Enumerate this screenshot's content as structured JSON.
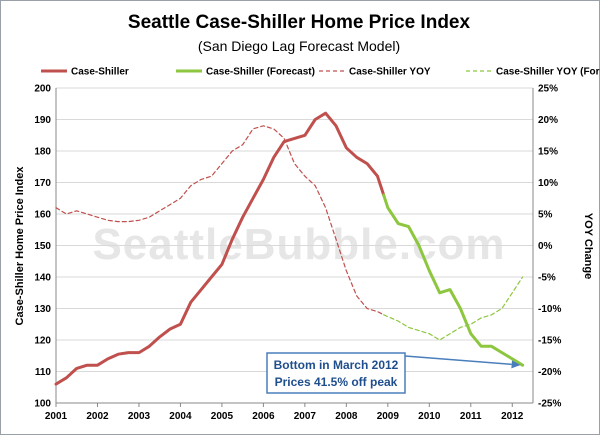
{
  "chart_data": {
    "type": "line",
    "title": "Seattle Case-Shiller Home Price Index",
    "subtitle": "(San Diego Lag Forecast Model)",
    "ylabel": "Case-Shiller Home Price Index",
    "y2label": "YOY Change",
    "ylim": [
      100,
      200
    ],
    "y_ticks": [
      "100",
      "110",
      "120",
      "130",
      "140",
      "150",
      "160",
      "170",
      "180",
      "190",
      "200"
    ],
    "y2lim": [
      -25,
      25
    ],
    "y2_ticks": [
      "-25%",
      "-20%",
      "-15%",
      "-10%",
      "-5%",
      "0%",
      "5%",
      "10%",
      "15%",
      "20%",
      "25%"
    ],
    "xlim": [
      2001,
      2012.5
    ],
    "x_ticks": [
      "2001",
      "2002",
      "2003",
      "2004",
      "2005",
      "2006",
      "2007",
      "2008",
      "2009",
      "2010",
      "2011",
      "2012"
    ],
    "grid": true,
    "legend_position": "top",
    "watermark": "SeattleBubble.com",
    "series": [
      {
        "name": "Case-Shiller",
        "axis": "left",
        "color": "#c0504d",
        "style": "solid",
        "x": [
          2001.0,
          2001.25,
          2001.5,
          2001.75,
          2002.0,
          2002.25,
          2002.5,
          2002.75,
          2003.0,
          2003.25,
          2003.5,
          2003.75,
          2004.0,
          2004.25,
          2004.5,
          2004.75,
          2005.0,
          2005.25,
          2005.5,
          2005.75,
          2006.0,
          2006.25,
          2006.5,
          2006.75,
          2007.0,
          2007.25,
          2007.5,
          2007.75,
          2008.0,
          2008.25,
          2008.5,
          2008.75,
          2008.9
        ],
        "y": [
          106,
          108,
          111,
          112,
          112,
          114,
          115.5,
          116,
          116,
          118,
          121,
          123.5,
          125,
          132,
          136,
          140,
          144,
          152,
          159,
          165,
          171,
          178,
          183,
          184,
          185,
          190,
          192,
          188,
          181,
          178,
          176,
          172,
          166
        ]
      },
      {
        "name": "Case-Shiller (Forecast)",
        "axis": "left",
        "color": "#8dc63f",
        "style": "solid",
        "x": [
          2008.9,
          2009.0,
          2009.25,
          2009.5,
          2009.75,
          2010.0,
          2010.25,
          2010.5,
          2010.75,
          2011.0,
          2011.25,
          2011.5,
          2011.75,
          2012.0,
          2012.25
        ],
        "y": [
          166,
          162,
          157,
          156,
          150,
          142,
          135,
          136,
          130,
          122,
          118,
          118,
          116,
          114,
          112
        ]
      },
      {
        "name": "Case-Shiller YOY",
        "axis": "right",
        "color": "#c0504d",
        "style": "dashed",
        "x": [
          2001.0,
          2001.25,
          2001.5,
          2001.75,
          2002.0,
          2002.25,
          2002.5,
          2002.75,
          2003.0,
          2003.25,
          2003.5,
          2003.75,
          2004.0,
          2004.25,
          2004.5,
          2004.75,
          2005.0,
          2005.25,
          2005.5,
          2005.75,
          2006.0,
          2006.25,
          2006.5,
          2006.75,
          2007.0,
          2007.25,
          2007.5,
          2007.75,
          2008.0,
          2008.25,
          2008.5,
          2008.75,
          2008.9
        ],
        "y": [
          6,
          5,
          5.5,
          5,
          4.5,
          4,
          3.8,
          3.8,
          4,
          4.5,
          5.5,
          6.5,
          7.5,
          9.5,
          10.5,
          11,
          13,
          15,
          16,
          18.5,
          19,
          18.5,
          17,
          13,
          11,
          9.5,
          6,
          1,
          -4,
          -8,
          -10,
          -10.5,
          -11
        ]
      },
      {
        "name": "Case-Shiller YOY (Forecast)",
        "axis": "right",
        "color": "#8dc63f",
        "style": "dashed",
        "x": [
          2008.9,
          2009.25,
          2009.5,
          2009.75,
          2010.0,
          2010.25,
          2010.5,
          2010.75,
          2011.0,
          2011.25,
          2011.5,
          2011.75,
          2012.0,
          2012.25
        ],
        "y": [
          -11,
          -12,
          -13,
          -13.5,
          -14,
          -15,
          -14,
          -13,
          -12.5,
          -11.5,
          -11,
          -10,
          -7.5,
          -5
        ]
      }
    ],
    "annotation": {
      "lines": [
        "Bottom in March 2012",
        "Prices 41.5% off peak"
      ],
      "x": 2012.25,
      "y": 112
    }
  }
}
